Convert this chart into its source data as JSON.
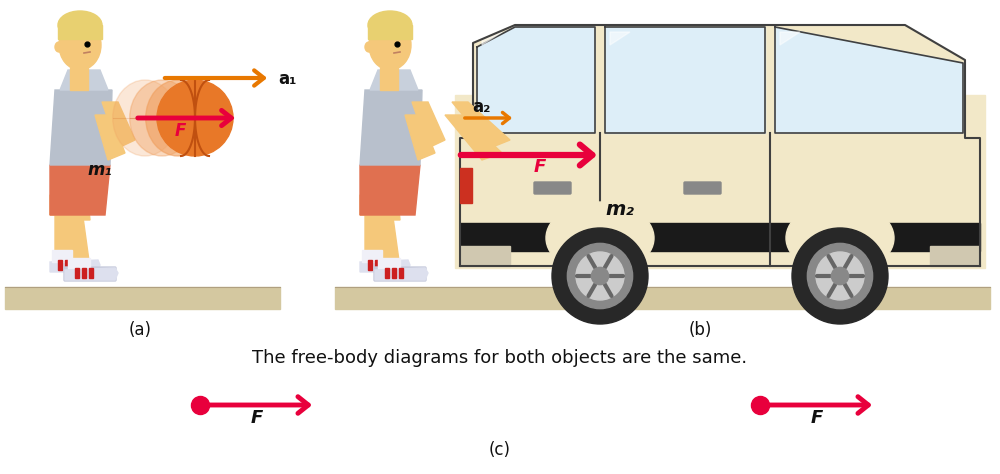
{
  "fig_width": 10.0,
  "fig_height": 4.74,
  "dpi": 100,
  "bg_color": "#ffffff",
  "panel_a_label": "(a)",
  "panel_b_label": "(b)",
  "panel_c_label": "(c)",
  "caption_text": "The free-body diagrams for both objects are the same.",
  "arrow_color_F": "#e8003c",
  "arrow_color_a1": "#e87800",
  "arrow_color_a2": "#e87800",
  "ground_color": "#d4c8a0",
  "ground_line_color": "#b0a080",
  "skin_color": "#f5c87a",
  "shirt_color": "#b8c0cc",
  "shorts_color": "#e07050",
  "hair_color": "#e8d070",
  "shoe_color": "#e8e8f0",
  "shoe_stripe": "#cc2020",
  "ball_main": "#e87828",
  "ball_dark": "#c05010",
  "ball_shadow": "#f0a060",
  "car_body_color": "#f2e8c8",
  "car_outline": "#404040",
  "car_black_strip": "#1a1a1a",
  "car_window": "#c8dce8",
  "car_window_light": "#ddeef8",
  "wheel_dark": "#282828",
  "wheel_mid": "#888888",
  "wheel_light": "#cccccc",
  "label_F": "F",
  "label_a1": "a₁",
  "label_a2": "a₂",
  "label_m1": "m₁",
  "label_m2": "m₂",
  "font_italic_bold": {
    "family": "sans-serif",
    "style": "italic",
    "weight": "bold"
  },
  "font_size_sm": 10,
  "font_size_md": 12,
  "font_size_lg": 14,
  "font_size_caption": 13
}
